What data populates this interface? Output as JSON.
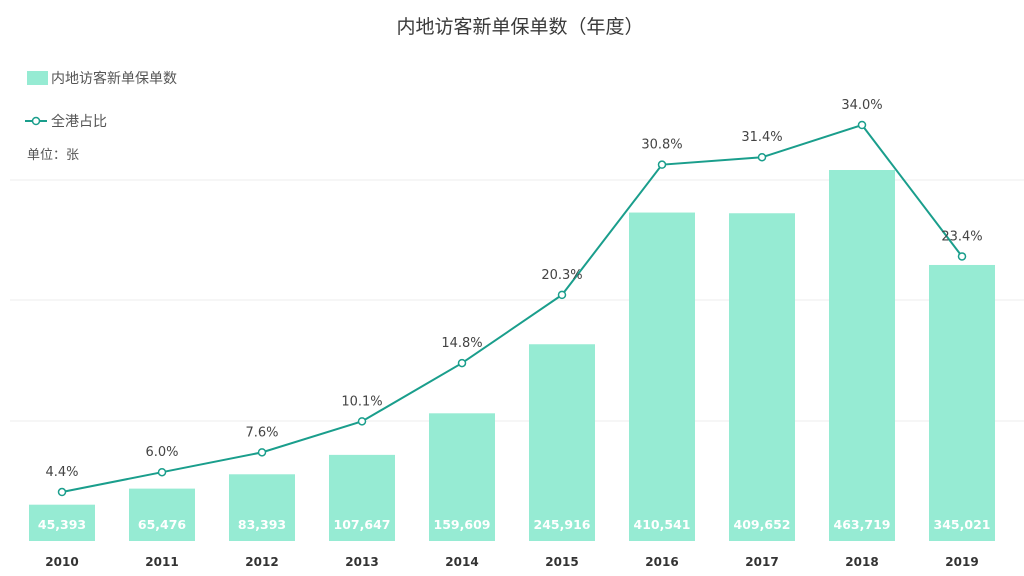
{
  "chart_data": {
    "type": "bar",
    "title": "内地访客新单保单数（年度）",
    "unit_label": "单位：张",
    "categories": [
      "2010",
      "2011",
      "2012",
      "2013",
      "2014",
      "2015",
      "2016",
      "2017",
      "2018",
      "2019"
    ],
    "series": [
      {
        "name": "内地访客新单保单数",
        "type": "bar",
        "color": "#96ebd3",
        "values": [
          45393,
          65476,
          83393,
          107647,
          159609,
          245916,
          410541,
          409652,
          463719,
          345021
        ],
        "labels": [
          "45,393",
          "65,476",
          "83,393",
          "107,647",
          "159,609",
          "245,916",
          "410,541",
          "409,652",
          "463,719",
          "345,021"
        ]
      },
      {
        "name": "全港占比",
        "type": "line",
        "color": "#1a9e8c",
        "values": [
          4.4,
          6.0,
          7.6,
          10.1,
          14.8,
          20.3,
          30.8,
          31.4,
          34.0,
          23.4
        ],
        "labels": [
          "4.4%",
          "6.0%",
          "7.6%",
          "10.1%",
          "14.8%",
          "20.3%",
          "30.8%",
          "31.4%",
          "34.0%",
          "23.4%"
        ]
      }
    ],
    "grid": true,
    "legend_position": "top-left"
  }
}
